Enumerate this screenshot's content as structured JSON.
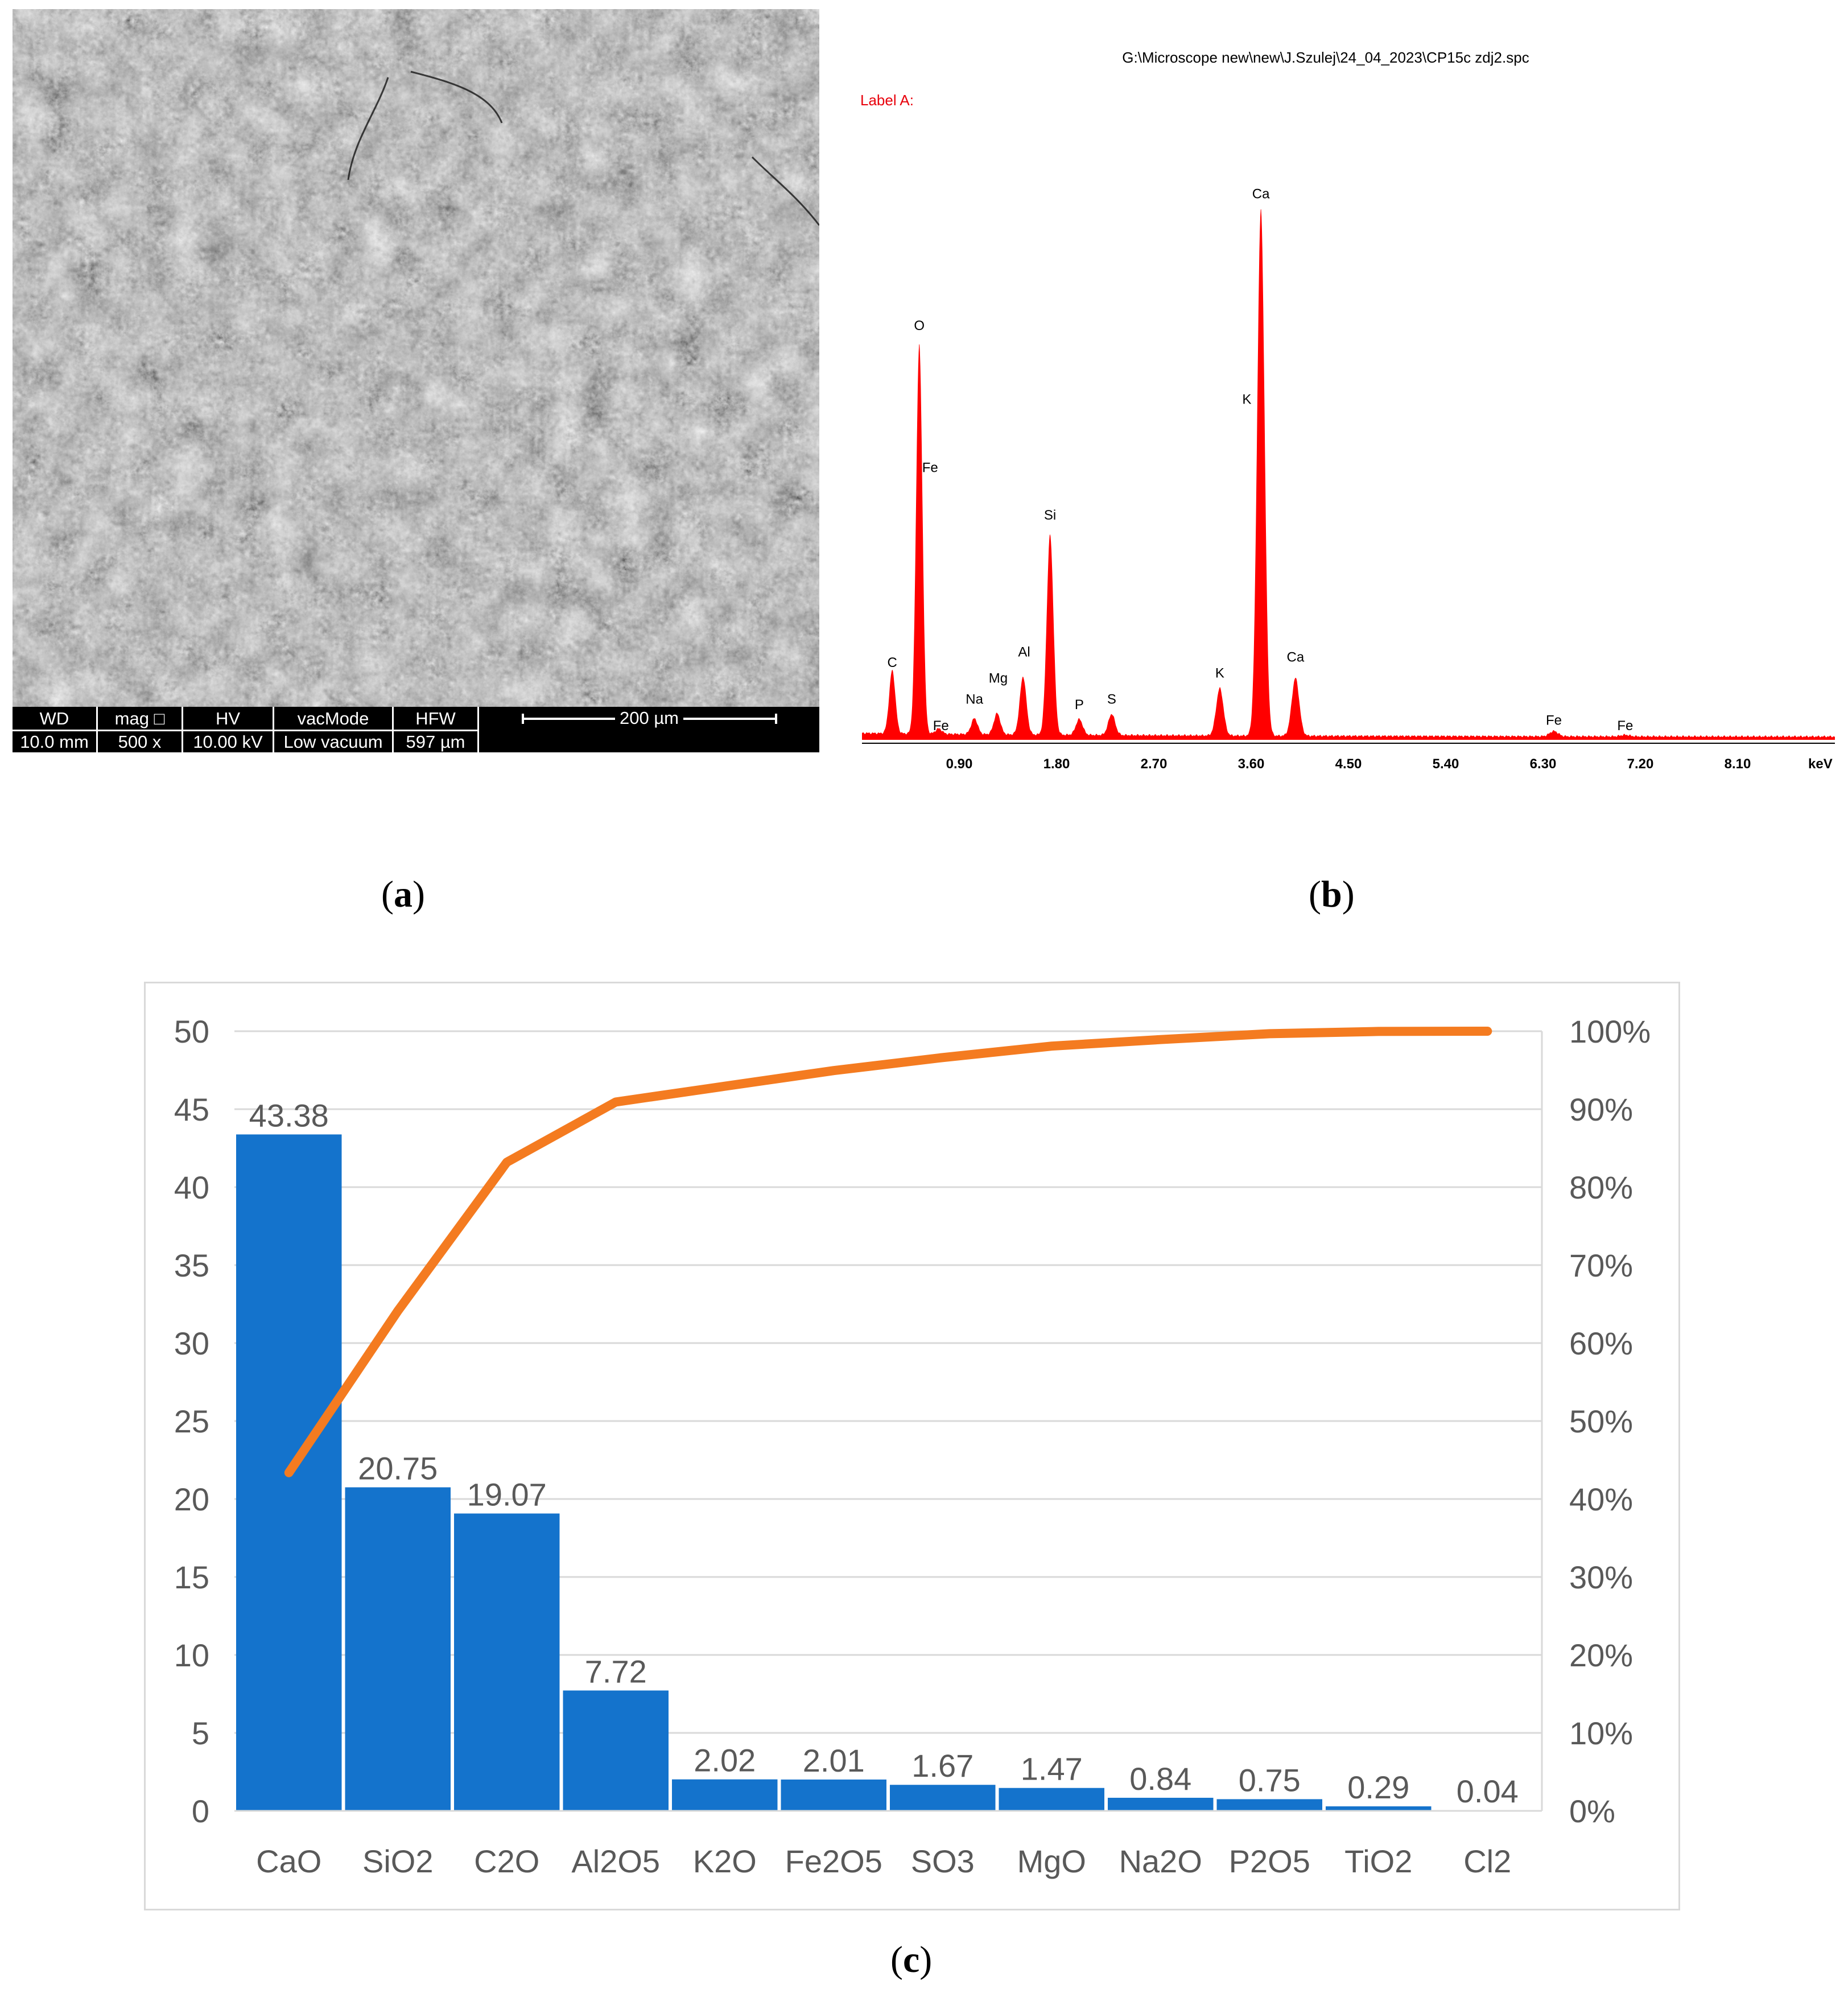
{
  "panels": {
    "a": {
      "caption_open": "(",
      "caption_letter": "a",
      "caption_close": ")",
      "databar": {
        "headers": [
          "WD",
          "mag □",
          "HV",
          "vacMode",
          "HFW"
        ],
        "values": [
          "10.0 mm",
          "500 x",
          "10.00 kV",
          "Low vacuum",
          "597 µm"
        ],
        "scale_label": "200 µm"
      }
    },
    "b": {
      "caption_open": "(",
      "caption_letter": "b",
      "caption_close": ")",
      "file_path": "G:\\Microscope new\\new\\J.Szulej\\24_04_2023\\CP15c zdj2.spc",
      "label": "Label A:",
      "unit": "keV"
    },
    "c": {
      "caption_open": "(",
      "caption_letter": "c",
      "caption_close": ")"
    }
  },
  "colors": {
    "spectrum": "#ff0000",
    "label_red": "#e8000b",
    "bar": "#1473cc",
    "cumulative": "#f47b20",
    "grid": "#d9d9d9",
    "axis_text": "#595959"
  },
  "chart_data": [
    {
      "type": "area",
      "x_unit": "keV",
      "xlim": [
        0,
        9.0
      ],
      "xticks": [
        0.9,
        1.8,
        2.7,
        3.6,
        4.5,
        5.4,
        6.3,
        7.2,
        8.1
      ],
      "xtick_labels": [
        "0.90",
        "1.80",
        "2.70",
        "3.60",
        "4.50",
        "5.40",
        "6.30",
        "7.20",
        "8.10"
      ],
      "peaks": [
        {
          "element": "C",
          "energy": 0.28,
          "height": 0.12
        },
        {
          "element": "O",
          "energy": 0.53,
          "height": 0.74
        },
        {
          "element": "Fe",
          "energy": 0.71,
          "height": 0.01
        },
        {
          "element": "Na",
          "energy": 1.04,
          "height": 0.03
        },
        {
          "element": "Mg",
          "energy": 1.25,
          "height": 0.04
        },
        {
          "element": "Al",
          "energy": 1.49,
          "height": 0.11
        },
        {
          "element": "Si",
          "energy": 1.74,
          "height": 0.38
        },
        {
          "element": "P",
          "energy": 2.01,
          "height": 0.03
        },
        {
          "element": "S",
          "energy": 2.31,
          "height": 0.04
        },
        {
          "element": "K",
          "energy": 3.31,
          "height": 0.09
        },
        {
          "element": "Ca",
          "energy": 3.69,
          "height": 1.0
        },
        {
          "element": "Ca",
          "energy": 4.01,
          "height": 0.11
        },
        {
          "element": "Fe",
          "energy": 6.4,
          "height": 0.01
        },
        {
          "element": "Fe",
          "energy": 7.06,
          "height": 0.003
        }
      ],
      "peak_labels": [
        {
          "text": "C",
          "energy": 0.28,
          "level": 0.13
        },
        {
          "text": "O",
          "energy": 0.53,
          "level": 0.77
        },
        {
          "text": "Fe",
          "energy": 0.63,
          "level": 0.5
        },
        {
          "text": "Fe",
          "energy": 0.73,
          "level": 0.01
        },
        {
          "text": "Na",
          "energy": 1.04,
          "level": 0.06
        },
        {
          "text": "Mg",
          "energy": 1.26,
          "level": 0.1
        },
        {
          "text": "Al",
          "energy": 1.5,
          "level": 0.15
        },
        {
          "text": "Si",
          "energy": 1.74,
          "level": 0.41
        },
        {
          "text": "P",
          "energy": 2.01,
          "level": 0.05
        },
        {
          "text": "S",
          "energy": 2.31,
          "level": 0.06
        },
        {
          "text": "K",
          "energy": 3.31,
          "level": 0.11
        },
        {
          "text": "K",
          "energy": 3.56,
          "level": 0.63
        },
        {
          "text": "Ca",
          "energy": 3.69,
          "level": 1.02
        },
        {
          "text": "Ca",
          "energy": 4.01,
          "level": 0.14
        },
        {
          "text": "Fe",
          "energy": 6.4,
          "level": 0.02
        },
        {
          "text": "Fe",
          "energy": 7.06,
          "level": 0.01
        }
      ]
    },
    {
      "type": "bar",
      "categories": [
        "CaO",
        "SiO2",
        "C2O",
        "Al2O5",
        "K2O",
        "Fe2O5",
        "SO3",
        "MgO",
        "Na2O",
        "P2O5",
        "TiO2",
        "Cl2"
      ],
      "values": [
        43.38,
        20.75,
        19.07,
        7.72,
        2.02,
        2.01,
        1.67,
        1.47,
        0.84,
        0.75,
        0.29,
        0.04
      ],
      "value_labels": [
        "43.38",
        "20.75",
        "19.07",
        "7.72",
        "2.02",
        "2.01",
        "1.67",
        "1.47",
        "0.84",
        "0.75",
        "0.29",
        "0.04"
      ],
      "cumulative_percent": [
        43.38,
        64.13,
        83.2,
        90.92,
        92.94,
        94.95,
        96.62,
        98.09,
        98.93,
        99.68,
        99.97,
        100.0
      ],
      "ylim": [
        0,
        50
      ],
      "yticks": [
        "0",
        "5",
        "10",
        "15",
        "20",
        "25",
        "30",
        "35",
        "40",
        "45",
        "50"
      ],
      "y2lim": [
        0,
        100
      ],
      "y2ticks": [
        "0%",
        "10%",
        "20%",
        "30%",
        "40%",
        "50%",
        "60%",
        "70%",
        "80%",
        "90%",
        "100%"
      ],
      "grid": true
    }
  ]
}
